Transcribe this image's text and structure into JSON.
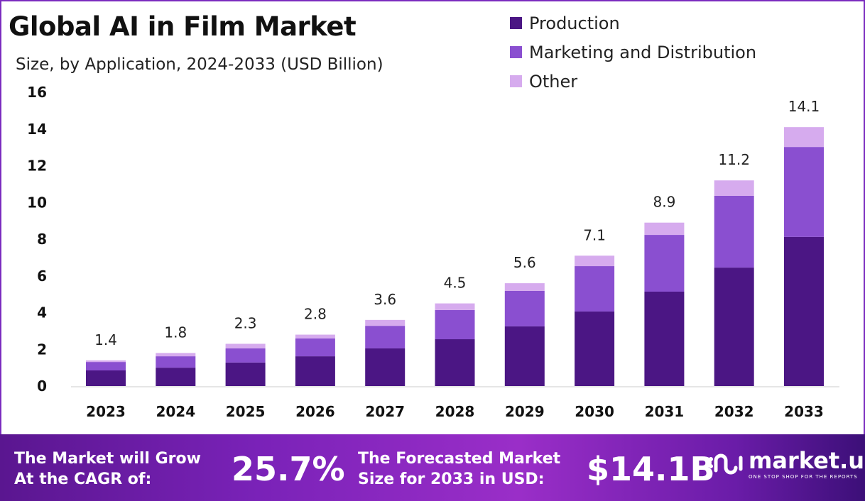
{
  "title": "Global AI in Film Market",
  "subtitle": "Size, by Application, 2024-2033 (USD Billion)",
  "colors": {
    "production": "#4b1684",
    "marketing": "#8a4fd0",
    "other": "#d6abee"
  },
  "chart_data": {
    "type": "bar",
    "stacked": true,
    "title": "Global AI in Film Market",
    "subtitle": "Size, by Application, 2024-2033 (USD Billion)",
    "categories": [
      "2023",
      "2024",
      "2025",
      "2026",
      "2027",
      "2028",
      "2029",
      "2030",
      "2031",
      "2032",
      "2033"
    ],
    "series": [
      {
        "name": "Production",
        "values": [
          0.85,
          1.0,
          1.28,
          1.62,
          2.05,
          2.55,
          3.25,
          4.06,
          5.14,
          6.45,
          8.12
        ]
      },
      {
        "name": "Marketing and Distribution",
        "values": [
          0.46,
          0.62,
          0.77,
          0.97,
          1.23,
          1.59,
          1.93,
          2.47,
          3.09,
          3.91,
          4.9
        ]
      },
      {
        "name": "Other",
        "values": [
          0.09,
          0.18,
          0.25,
          0.21,
          0.32,
          0.36,
          0.42,
          0.57,
          0.67,
          0.84,
          1.08
        ]
      }
    ],
    "totals": [
      "1.4",
      "1.8",
      "2.3",
      "2.8",
      "3.6",
      "4.5",
      "5.6",
      "7.1",
      "8.9",
      "11.2",
      "14.1"
    ],
    "yticks": [
      "0",
      "2",
      "4",
      "6",
      "8",
      "10",
      "12",
      "14",
      "16"
    ],
    "ylim": [
      0,
      16
    ],
    "xlabel": "",
    "ylabel": "",
    "legend": "top-right",
    "grid": false
  },
  "footer": {
    "cagr_label_1": "The Market will Grow",
    "cagr_label_2": "At the CAGR of:",
    "cagr_value": "25.7%",
    "forecast_label_1": "The Forecasted Market",
    "forecast_label_2": "Size for 2033 in USD:",
    "forecast_value": "$14.1B",
    "brand": "market.us",
    "tagline": "ONE STOP SHOP FOR THE REPORTS"
  }
}
